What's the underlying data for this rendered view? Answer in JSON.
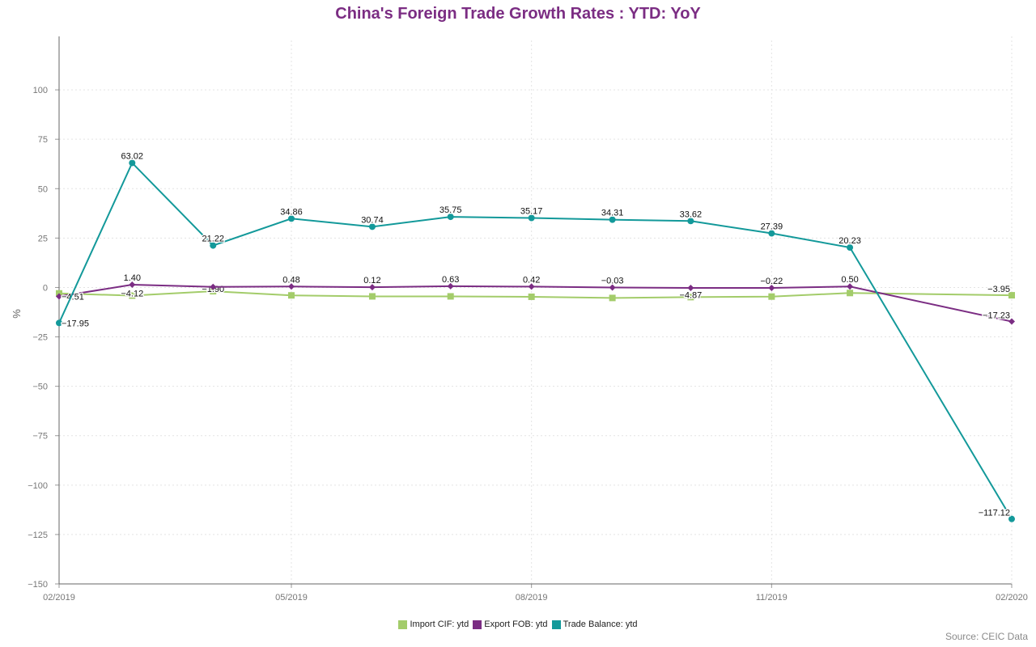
{
  "chart_data": {
    "type": "line",
    "title": "China's Foreign Trade Growth Rates : YTD: YoY",
    "ylabel": "%",
    "xlabel": "",
    "source": "Source: CEIC Data",
    "ylim": [
      -150,
      125
    ],
    "yticks": [
      -150,
      -125,
      -100,
      -75,
      -50,
      -25,
      0,
      25,
      50,
      75,
      100
    ],
    "ytick_labels": [
      "−150",
      "−125",
      "−100",
      "−75",
      "−50",
      "−25",
      "0",
      "25",
      "50",
      "75",
      "100"
    ],
    "x": [
      "2019-02",
      "2019-03",
      "2019-04",
      "2019-05",
      "2019-06",
      "2019-07",
      "2019-08",
      "2019-09",
      "2019-10",
      "2019-11",
      "2019-12",
      "2020-02"
    ],
    "xticks": [
      "2019-02",
      "2019-05",
      "2019-08",
      "2019-11",
      "2020-02"
    ],
    "xtick_labels": [
      "02/2019",
      "05/2019",
      "08/2019",
      "11/2019",
      "02/2020"
    ],
    "grid": true,
    "legend_position": "bottom",
    "series": [
      {
        "name": "Import CIF: ytd",
        "color": "#a3cc6a",
        "marker": "square",
        "values": [
          -3.0,
          -4.12,
          -1.9,
          -4.0,
          -4.5,
          -4.5,
          -4.7,
          -5.3,
          -4.87,
          -4.6,
          -2.8,
          -3.95
        ],
        "labels": [
          "",
          "−4.12",
          "−1.90",
          "",
          "",
          "",
          "",
          "",
          "−4.87",
          "",
          "",
          "−3.95"
        ]
      },
      {
        "name": "Export FOB: ytd",
        "color": "#7b2d83",
        "marker": "diamond",
        "values": [
          -4.51,
          1.4,
          0.3,
          0.48,
          0.12,
          0.63,
          0.42,
          -0.03,
          -0.2,
          -0.22,
          0.5,
          -17.23
        ],
        "labels": [
          "−4.51",
          "1.40",
          "",
          "0.48",
          "0.12",
          "0.63",
          "0.42",
          "−0.03",
          "",
          "−0.22",
          "0.50",
          "−17.23"
        ]
      },
      {
        "name": "Trade Balance: ytd",
        "color": "#13999a",
        "marker": "circle",
        "values": [
          -17.95,
          63.02,
          21.22,
          34.86,
          30.74,
          35.75,
          35.17,
          34.31,
          33.62,
          27.39,
          20.23,
          -117.12
        ],
        "labels": [
          "−17.95",
          "63.02",
          "21.22",
          "34.86",
          "30.74",
          "35.75",
          "35.17",
          "34.31",
          "33.62",
          "27.39",
          "20.23",
          "−117.12"
        ]
      }
    ]
  }
}
